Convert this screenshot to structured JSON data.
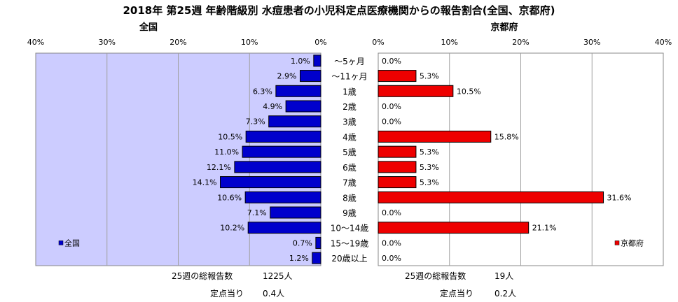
{
  "chart_data": [
    {
      "type": "bar",
      "orientation": "horizontal",
      "title": "全国",
      "categories": [
        "～5ヶ月",
        "～11ヶ月",
        "1歳",
        "2歳",
        "3歳",
        "4歳",
        "5歳",
        "6歳",
        "7歳",
        "8歳",
        "9歳",
        "10～14歳",
        "15～19歳",
        "20歳以上"
      ],
      "series": [
        {
          "name": "全国",
          "color": "#0000cc",
          "values": [
            1.0,
            2.9,
            6.3,
            4.9,
            7.3,
            10.5,
            11.0,
            12.1,
            14.1,
            10.6,
            7.1,
            10.2,
            0.7,
            1.2
          ],
          "labels": [
            "1.0%",
            "2.9%",
            "6.3%",
            "4.9%",
            "7.3%",
            "10.5%",
            "11.0%",
            "12.1%",
            "14.1%",
            "10.6%",
            "7.1%",
            "10.2%",
            "0.7%",
            "1.2%"
          ]
        }
      ],
      "xlim": [
        0,
        40
      ],
      "reversed_x": true,
      "ticks": [
        "0%",
        "10%",
        "20%",
        "30%",
        "40%"
      ],
      "legend_position": "bottom-left",
      "plot_bg": "#ccccff",
      "grid": true
    },
    {
      "type": "bar",
      "orientation": "horizontal",
      "title": "京都府",
      "categories": [
        "～5ヶ月",
        "～11ヶ月",
        "1歳",
        "2歳",
        "3歳",
        "4歳",
        "5歳",
        "6歳",
        "7歳",
        "8歳",
        "9歳",
        "10～14歳",
        "15～19歳",
        "20歳以上"
      ],
      "series": [
        {
          "name": "京都府",
          "color": "#ee0000",
          "values": [
            0.0,
            5.3,
            10.5,
            0.0,
            0.0,
            15.8,
            5.3,
            5.3,
            5.3,
            31.6,
            0.0,
            21.1,
            0.0,
            0.0
          ],
          "labels": [
            "0.0%",
            "5.3%",
            "10.5%",
            "0.0%",
            "0.0%",
            "15.8%",
            "5.3%",
            "5.3%",
            "5.3%",
            "31.6%",
            "0.0%",
            "21.1%",
            "0.0%",
            "0.0%"
          ]
        }
      ],
      "xlim": [
        0,
        40
      ],
      "ticks": [
        "0%",
        "10%",
        "20%",
        "30%",
        "40%"
      ],
      "legend_position": "bottom-right",
      "plot_bg": "#ffffff",
      "grid": true
    }
  ],
  "page": {
    "title": "2018年 第25週 年齢階級別 水痘患者の小児科定点医療機関からの報告割合(全国、京都府)",
    "left_title": "全国",
    "right_title": "京都府"
  },
  "footer": {
    "national": {
      "total_label": "25週の総報告数",
      "total_value": "1225人",
      "per_label": "定点当り",
      "per_value": "0.4人"
    },
    "kyoto": {
      "total_label": "25週の総報告数",
      "total_value": "19人",
      "per_label": "定点当り",
      "per_value": "0.2人"
    }
  }
}
